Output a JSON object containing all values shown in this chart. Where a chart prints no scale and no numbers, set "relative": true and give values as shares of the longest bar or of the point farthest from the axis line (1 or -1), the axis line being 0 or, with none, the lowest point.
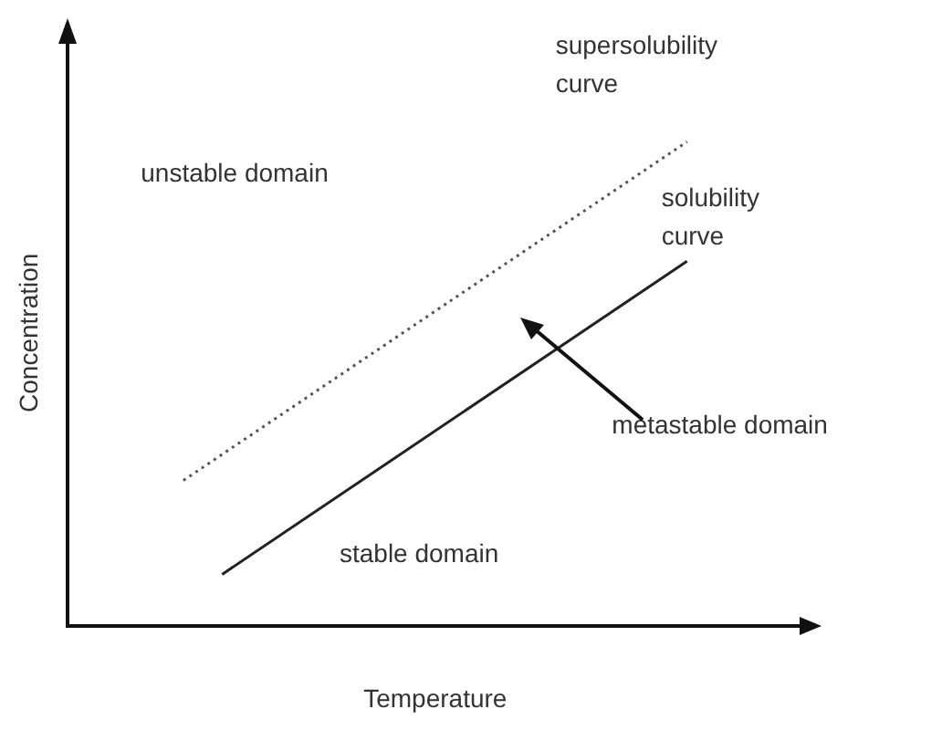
{
  "chart_data": {
    "type": "line",
    "relative": true,
    "xlabel": "Temperature",
    "ylabel": "Concentration",
    "categories": [
      null,
      null,
      null,
      null,
      null,
      null,
      null,
      null,
      null,
      null,
      null,
      null,
      null,
      null,
      null,
      null,
      null,
      null,
      null,
      null
    ],
    "series": [
      {
        "name": "supersolubility curve",
        "color": "#555555",
        "line_style": "dotted",
        "values": [
          null,
          null,
          null,
          0.3,
          null,
          null,
          null,
          null,
          null,
          null,
          null,
          null,
          null,
          null,
          null,
          null,
          1,
          null,
          null,
          null
        ]
      },
      {
        "name": "solubility curve",
        "color": "#222222",
        "line_style": "solid",
        "values": [
          null,
          null,
          null,
          null,
          0.106,
          null,
          null,
          null,
          null,
          null,
          null,
          null,
          null,
          null,
          null,
          null,
          0.753,
          null,
          null,
          null
        ]
      }
    ],
    "annotations": [
      "unstable domain",
      "metastable domain",
      "stable domain"
    ],
    "grid": false,
    "legend": false,
    "marker": "none"
  }
}
